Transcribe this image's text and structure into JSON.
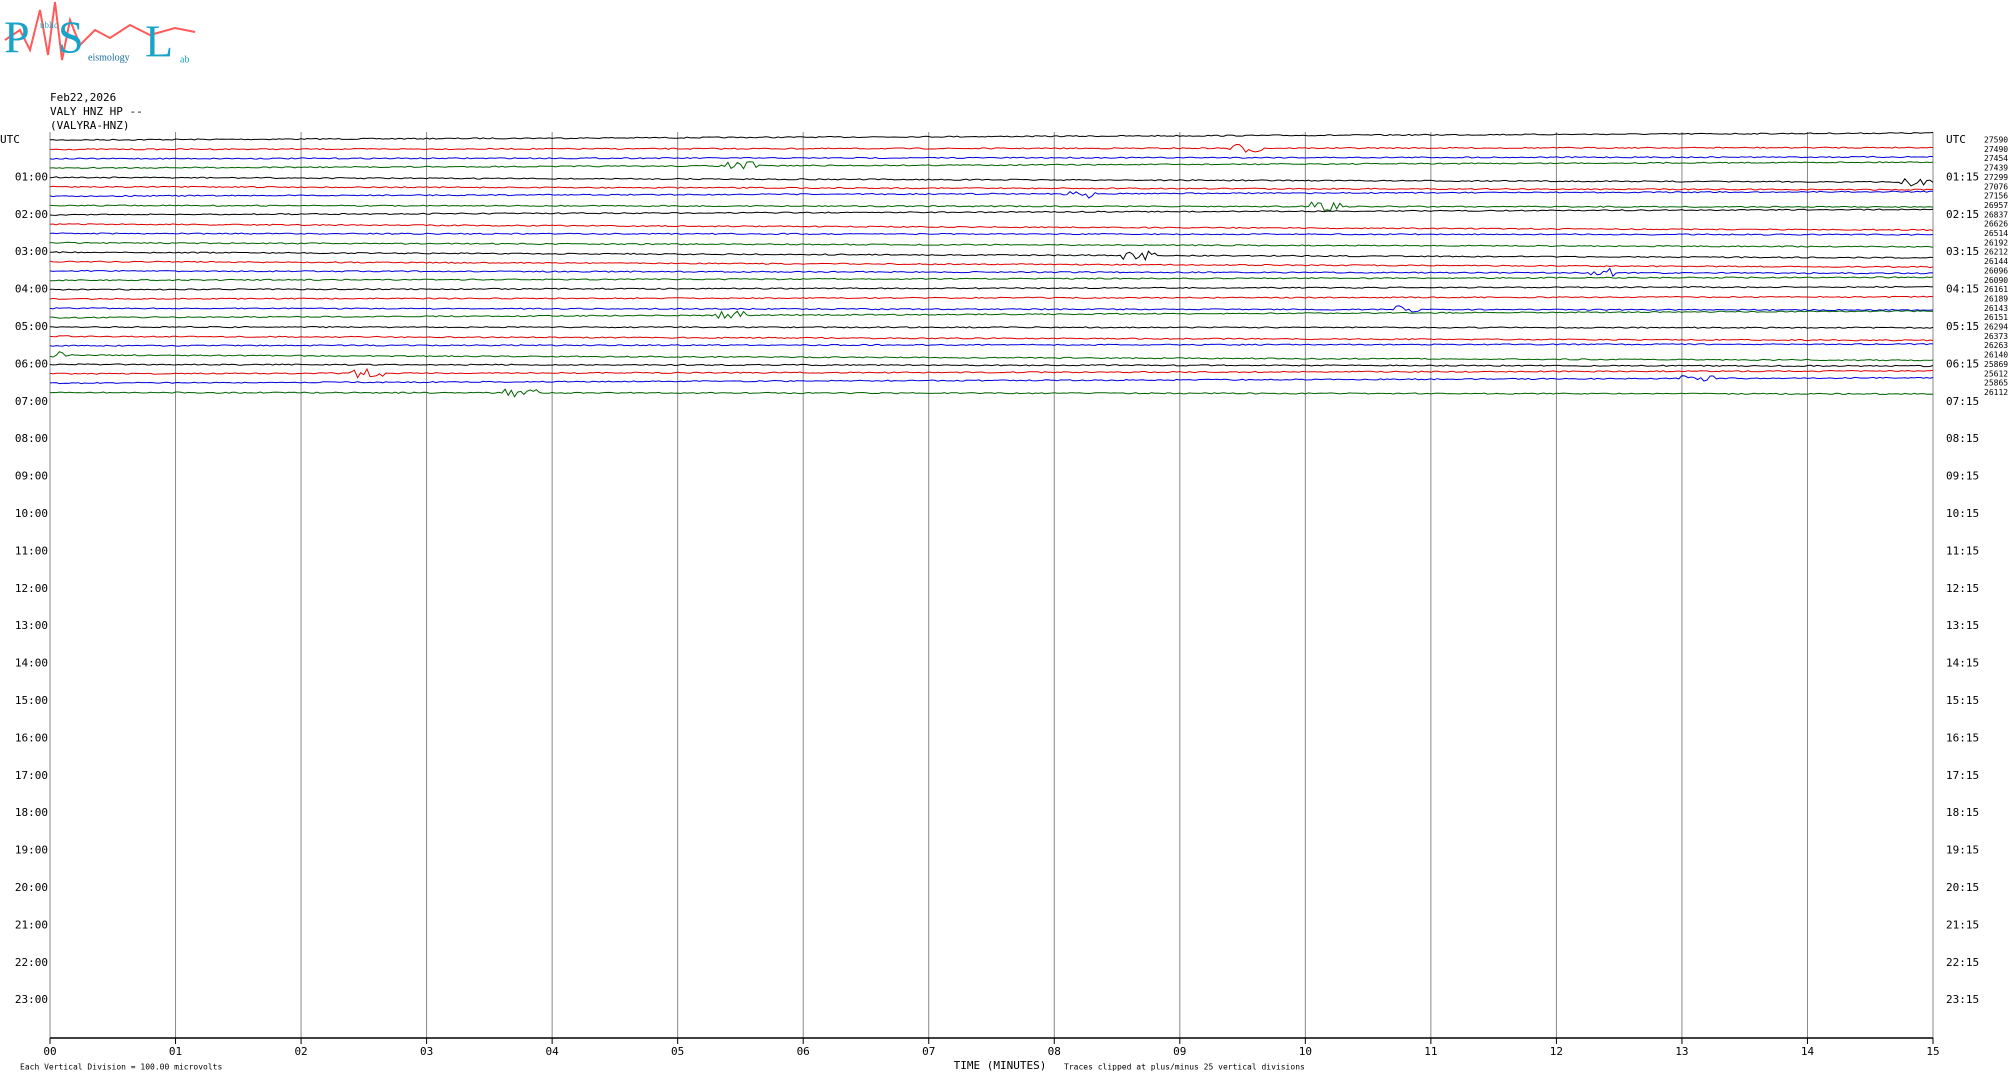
{
  "header": {
    "logo": {
      "big": [
        "P",
        "S",
        "L"
      ],
      "small": [
        "ublic",
        "eismology",
        "ab"
      ]
    },
    "date": "Feb22,2026",
    "station": "VALY HNZ HP --",
    "site": "(VALYRA-HNZ)"
  },
  "chart_data": {
    "type": "helicorder",
    "xlabel": "TIME (MINUTES)",
    "xlim": [
      0,
      15
    ],
    "xticks": [
      {
        "value": 0,
        "label": "00"
      },
      {
        "value": 1,
        "label": "01"
      },
      {
        "value": 2,
        "label": "02"
      },
      {
        "value": 3,
        "label": "03"
      },
      {
        "value": 4,
        "label": "04"
      },
      {
        "value": 5,
        "label": "05"
      },
      {
        "value": 6,
        "label": "06"
      },
      {
        "value": 7,
        "label": "07"
      },
      {
        "value": 8,
        "label": "08"
      },
      {
        "value": 9,
        "label": "09"
      },
      {
        "value": 10,
        "label": "10"
      },
      {
        "value": 11,
        "label": "11"
      },
      {
        "value": 12,
        "label": "12"
      },
      {
        "value": 13,
        "label": "13"
      },
      {
        "value": 14,
        "label": "14"
      },
      {
        "value": 15,
        "label": "15"
      }
    ],
    "grid": true,
    "left_labels": [
      "UTC",
      "01:00",
      "02:00",
      "03:00",
      "04:00",
      "05:00",
      "06:00",
      "07:00",
      "08:00",
      "09:00",
      "10:00",
      "11:00",
      "12:00",
      "13:00",
      "14:00",
      "15:00",
      "16:00",
      "17:00",
      "18:00",
      "19:00",
      "20:00",
      "21:00",
      "22:00",
      "23:00"
    ],
    "right_labels": [
      "UTC",
      "01:15",
      "02:15",
      "03:15",
      "04:15",
      "05:15",
      "06:15",
      "07:15",
      "08:15",
      "09:15",
      "10:15",
      "11:15",
      "12:15",
      "13:15",
      "14:15",
      "15:15",
      "16:15",
      "17:15",
      "18:15",
      "19:15",
      "20:15",
      "21:15",
      "22:15",
      "23:15"
    ],
    "trace_colors": [
      "#000000",
      "#e00000",
      "#0000e0",
      "#006400"
    ],
    "trace_offsets": [
      27590,
      27490,
      27454,
      27439,
      27299,
      27076,
      27156,
      26957,
      26837,
      26626,
      26514,
      26192,
      26212,
      26144,
      26096,
      26090,
      26161,
      26189,
      26143,
      26151,
      26294,
      26373,
      26263,
      26140,
      25869,
      25612,
      25865,
      26112
    ],
    "footer_left": "Each Vertical Division =  100.00 microvolts",
    "footer_right": "Traces clipped at plus/minus 25 vertical divisions"
  }
}
